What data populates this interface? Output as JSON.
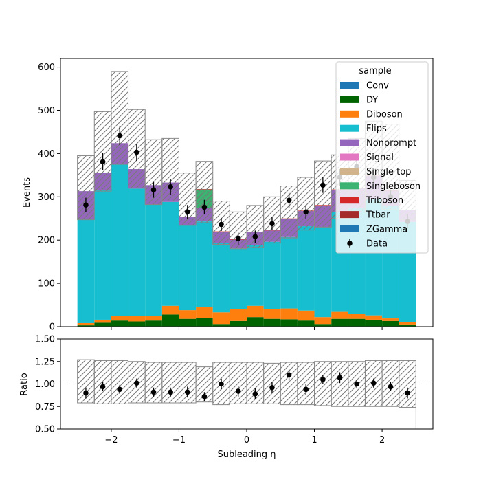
{
  "chart_data": [
    {
      "type": "stacked-step-histogram",
      "xlabel": "Subleading η",
      "ylabel": "Events",
      "xlim": [
        -2.75,
        2.75
      ],
      "ylim": [
        0,
        620
      ],
      "yticks": [
        0,
        100,
        200,
        300,
        400,
        500,
        600
      ],
      "xticks": [
        -2,
        -1,
        0,
        1,
        2
      ],
      "bin_edges": [
        -2.5,
        -2.25,
        -2.0,
        -1.75,
        -1.5,
        -1.25,
        -1.0,
        -0.75,
        -0.5,
        -0.25,
        0.0,
        0.25,
        0.5,
        0.75,
        1.0,
        1.25,
        1.5,
        1.75,
        2.0,
        2.25,
        2.5
      ],
      "legend": {
        "title": "sample",
        "placement": "top-right"
      },
      "series": [
        {
          "name": "Conv",
          "color": "#1f77b4",
          "values": [
            1,
            1,
            1,
            1,
            1,
            1,
            1,
            1,
            1,
            1,
            1,
            1,
            1,
            1,
            1,
            1,
            1,
            1,
            1,
            1
          ]
        },
        {
          "name": "DY",
          "color": "#006400",
          "values": [
            2,
            8,
            13,
            11,
            13,
            27,
            17,
            19,
            5,
            12,
            21,
            17,
            16,
            13,
            5,
            17,
            17,
            15,
            12,
            4
          ]
        },
        {
          "name": "Diboson",
          "color": "#ff7f0e",
          "values": [
            5,
            7,
            10,
            12,
            10,
            20,
            20,
            25,
            27,
            28,
            26,
            23,
            25,
            23,
            16,
            16,
            11,
            10,
            6,
            5
          ]
        },
        {
          "name": "Flips",
          "color": "#17becf",
          "values": [
            240,
            300,
            352,
            295,
            258,
            240,
            196,
            198,
            160,
            140,
            140,
            155,
            165,
            195,
            208,
            230,
            245,
            270,
            260,
            232
          ]
        },
        {
          "name": "Nonprompt",
          "color": "#9467bd",
          "values": [
            65,
            40,
            48,
            45,
            45,
            45,
            20,
            32,
            26,
            20,
            30,
            26,
            42,
            35,
            50,
            52,
            46,
            52,
            35,
            27
          ]
        },
        {
          "name": "Signal",
          "color": "#e377c2",
          "values": [
            0,
            0,
            0,
            0,
            0,
            0,
            0,
            0,
            0,
            0,
            0,
            0,
            0,
            0,
            0,
            0,
            0,
            0,
            0,
            0
          ]
        },
        {
          "name": "Single top",
          "color": "#d2b48c",
          "values": [
            0,
            0,
            0,
            0,
            0,
            0,
            0,
            0,
            0,
            0,
            0,
            0,
            0,
            0,
            0,
            0,
            0,
            0,
            0,
            0
          ]
        },
        {
          "name": "Singleboson",
          "color": "#3cb371",
          "values": [
            0,
            0,
            0,
            0,
            0,
            0,
            0,
            42,
            0,
            0,
            0,
            0,
            0,
            0,
            0,
            0,
            0,
            0,
            0,
            0
          ]
        },
        {
          "name": "Triboson",
          "color": "#d62728",
          "values": [
            0,
            0,
            0,
            0,
            0,
            0,
            0,
            1,
            1,
            1,
            1,
            1,
            1,
            1,
            1,
            1,
            1,
            1,
            1,
            1
          ]
        },
        {
          "name": "Ttbar",
          "color": "#a52a2a",
          "values": [
            0,
            0,
            0,
            0,
            0,
            0,
            0,
            0,
            0,
            0,
            0,
            0,
            0,
            0,
            0,
            0,
            0,
            0,
            0,
            0
          ]
        },
        {
          "name": "ZGamma",
          "color": "#1f77b4",
          "values": [
            0,
            0,
            0,
            0,
            0,
            0,
            0,
            0,
            0,
            0,
            0,
            0,
            0,
            0,
            0,
            0,
            0,
            0,
            0,
            0
          ]
        }
      ],
      "uncertainty_band": {
        "style": "hatched",
        "down": [
          247,
          313,
          375,
          320,
          282,
          290,
          234,
          240,
          190,
          180,
          183,
          193,
          205,
          223,
          230,
          250,
          265,
          285,
          270,
          248
        ],
        "up": [
          395,
          497,
          590,
          502,
          432,
          435,
          355,
          382,
          290,
          265,
          280,
          300,
          325,
          345,
          383,
          397,
          435,
          475,
          468,
          338
        ]
      },
      "data_points": {
        "name": "Data",
        "values": [
          281,
          381,
          441,
          403,
          316,
          323,
          265,
          276,
          236,
          203,
          208,
          238,
          292,
          265,
          327,
          345,
          370,
          345,
          300,
          243
        ],
        "errors": [
          17,
          20,
          21,
          20,
          18,
          18,
          16,
          17,
          15,
          14,
          14,
          15,
          17,
          16,
          18,
          19,
          19,
          19,
          17,
          16
        ]
      }
    },
    {
      "type": "ratio-step",
      "xlabel": "Subleading η",
      "ylabel": "Ratio",
      "xlim": [
        -2.75,
        2.75
      ],
      "ylim": [
        0.5,
        1.5
      ],
      "yticks": [
        "0.50",
        "0.75",
        "1.00",
        "1.25",
        "1.50"
      ],
      "xticks": [
        "−2",
        "−1",
        "0",
        "1",
        "2"
      ],
      "reference_line": 1.0,
      "band_down": [
        0.79,
        0.78,
        0.78,
        0.79,
        0.79,
        0.79,
        0.79,
        0.8,
        0.77,
        0.78,
        0.78,
        0.78,
        0.77,
        0.77,
        0.76,
        0.75,
        0.75,
        0.75,
        0.75,
        0.74
      ],
      "band_up": [
        1.27,
        1.26,
        1.26,
        1.25,
        1.24,
        1.24,
        1.24,
        1.19,
        1.24,
        1.24,
        1.24,
        1.23,
        1.24,
        1.24,
        1.25,
        1.25,
        1.25,
        1.26,
        1.26,
        1.26
      ],
      "values": [
        0.9,
        0.97,
        0.94,
        1.01,
        0.91,
        0.91,
        0.91,
        0.86,
        1.0,
        0.92,
        0.89,
        0.96,
        1.1,
        0.94,
        1.05,
        1.07,
        1.0,
        1.01,
        0.97,
        0.9
      ],
      "errors": [
        0.06,
        0.05,
        0.05,
        0.05,
        0.05,
        0.05,
        0.06,
        0.05,
        0.06,
        0.06,
        0.06,
        0.06,
        0.06,
        0.06,
        0.05,
        0.06,
        0.05,
        0.05,
        0.05,
        0.06
      ]
    }
  ],
  "main_yticks": [
    "0",
    "100",
    "200",
    "300",
    "400",
    "500",
    "600"
  ],
  "main_xticks": [
    "−2",
    "−1",
    "0",
    "1",
    "2"
  ],
  "legend": {
    "title": "sample",
    "entries": [
      "Conv",
      "DY",
      "Diboson",
      "Flips",
      "Nonprompt",
      "Signal",
      "Single top",
      "Singleboson",
      "Triboson",
      "Ttbar",
      "ZGamma",
      "Data"
    ]
  }
}
